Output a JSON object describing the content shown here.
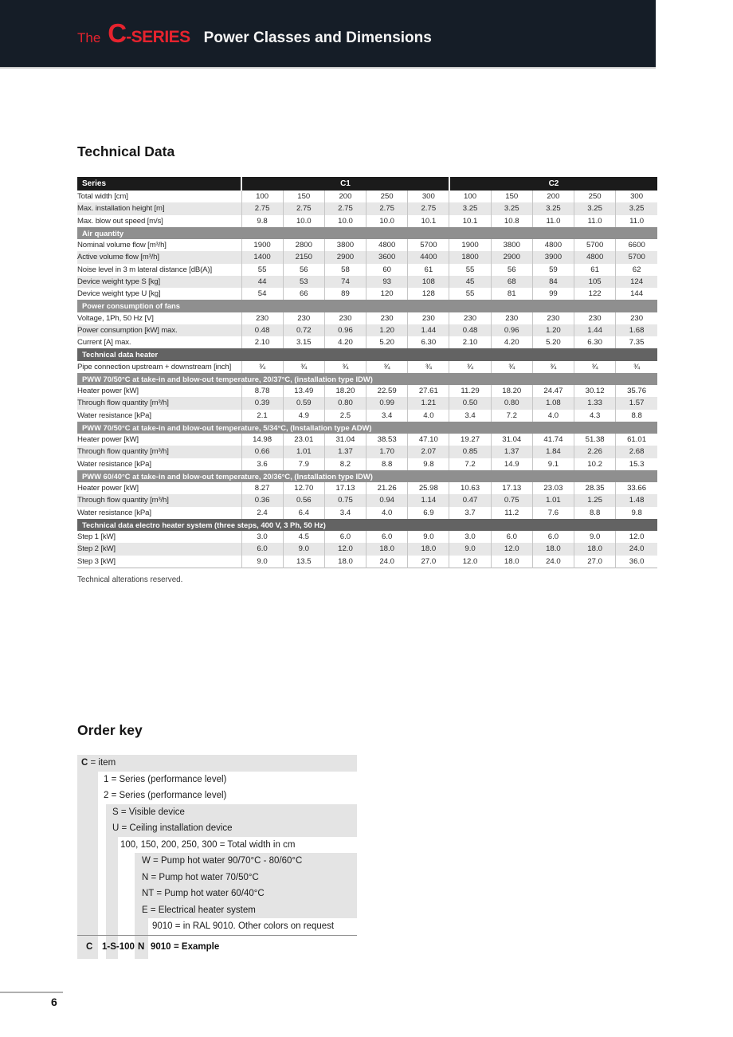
{
  "header": {
    "the": "The",
    "brand_c": "C",
    "brand_series": "-SERIES",
    "title": "Power Classes and Dimensions"
  },
  "headings": {
    "technical_data": "Technical Data",
    "order_key": "Order key"
  },
  "note": "Technical alterations reserved.",
  "footer": {
    "page_number": "6"
  },
  "table": {
    "series_label": "Series",
    "group1": "C1",
    "group2": "C2",
    "rows": [
      {
        "kind": "data",
        "label": "Total width [cm]",
        "values": [
          "100",
          "150",
          "200",
          "250",
          "300",
          "100",
          "150",
          "200",
          "250",
          "300"
        ]
      },
      {
        "kind": "data",
        "label": "Max. installation height [m]",
        "values": [
          "2.75",
          "2.75",
          "2.75",
          "2.75",
          "2.75",
          "3.25",
          "3.25",
          "3.25",
          "3.25",
          "3.25"
        ]
      },
      {
        "kind": "data",
        "label": "Max. blow out speed [m/s]",
        "values": [
          "9.8",
          "10.0",
          "10.0",
          "10.0",
          "10.1",
          "10.1",
          "10.8",
          "11.0",
          "11.0",
          "11.0"
        ]
      },
      {
        "kind": "section",
        "style": "mid",
        "label": "Air quantity"
      },
      {
        "kind": "data",
        "label": "Nominal volume flow [m³/h]",
        "values": [
          "1900",
          "2800",
          "3800",
          "4800",
          "5700",
          "1900",
          "3800",
          "4800",
          "5700",
          "6600"
        ]
      },
      {
        "kind": "data",
        "label": "Active volume flow [m³/h]",
        "values": [
          "1400",
          "2150",
          "2900",
          "3600",
          "4400",
          "1800",
          "2900",
          "3900",
          "4800",
          "5700"
        ]
      },
      {
        "kind": "data",
        "label": "Noise level in 3 m lateral distance [dB(A)]",
        "values": [
          "55",
          "56",
          "58",
          "60",
          "61",
          "55",
          "56",
          "59",
          "61",
          "62"
        ]
      },
      {
        "kind": "data",
        "label": "Device weight type S [kg]",
        "values": [
          "44",
          "53",
          "74",
          "93",
          "108",
          "45",
          "68",
          "84",
          "105",
          "124"
        ]
      },
      {
        "kind": "data",
        "label": "Device weight type U [kg]",
        "values": [
          "54",
          "66",
          "89",
          "120",
          "128",
          "55",
          "81",
          "99",
          "122",
          "144"
        ]
      },
      {
        "kind": "section",
        "style": "mid",
        "label": "Power consumption of fans"
      },
      {
        "kind": "data",
        "label": "Voltage, 1Ph, 50 Hz [V]",
        "values": [
          "230",
          "230",
          "230",
          "230",
          "230",
          "230",
          "230",
          "230",
          "230",
          "230"
        ]
      },
      {
        "kind": "data",
        "label": "Power consumption [kW] max.",
        "values": [
          "0.48",
          "0.72",
          "0.96",
          "1.20",
          "1.44",
          "0.48",
          "0.96",
          "1.20",
          "1.44",
          "1.68"
        ]
      },
      {
        "kind": "data",
        "label": "Current [A] max.",
        "values": [
          "2.10",
          "3.15",
          "4.20",
          "5.20",
          "6.30",
          "2.10",
          "4.20",
          "5.20",
          "6.30",
          "7.35"
        ]
      },
      {
        "kind": "section",
        "style": "dark",
        "label": "Technical data heater"
      },
      {
        "kind": "data",
        "label": "Pipe connection upstream + downstream [inch]",
        "values": [
          "¾",
          "¾",
          "¾",
          "¾",
          "¾",
          "¾",
          "¾",
          "¾",
          "¾",
          "¾"
        ]
      },
      {
        "kind": "section",
        "style": "mid",
        "label": "PWW 70/50°C at take-in and blow-out temperature, 20/37°C, (installation type IDW)"
      },
      {
        "kind": "data",
        "label": "Heater power [kW]",
        "values": [
          "8.78",
          "13.49",
          "18.20",
          "22.59",
          "27.61",
          "11.29",
          "18.20",
          "24.47",
          "30.12",
          "35.76"
        ]
      },
      {
        "kind": "data",
        "label": "Through flow quantity [m³/h]",
        "values": [
          "0.39",
          "0.59",
          "0.80",
          "0.99",
          "1.21",
          "0.50",
          "0.80",
          "1.08",
          "1.33",
          "1.57"
        ]
      },
      {
        "kind": "data",
        "label": "Water resistance [kPa]",
        "values": [
          "2.1",
          "4.9",
          "2.5",
          "3.4",
          "4.0",
          "3.4",
          "7.2",
          "4.0",
          "4.3",
          "8.8"
        ]
      },
      {
        "kind": "section",
        "style": "mid",
        "label": "PWW 70/50°C at take-in and blow-out temperature, 5/34°C, (Installation type ADW)"
      },
      {
        "kind": "data",
        "label": "Heater power [kW]",
        "values": [
          "14.98",
          "23.01",
          "31.04",
          "38.53",
          "47.10",
          "19.27",
          "31.04",
          "41.74",
          "51.38",
          "61.01"
        ]
      },
      {
        "kind": "data",
        "label": "Through flow quantity [m³/h]",
        "values": [
          "0.66",
          "1.01",
          "1.37",
          "1.70",
          "2.07",
          "0.85",
          "1.37",
          "1.84",
          "2.26",
          "2.68"
        ]
      },
      {
        "kind": "data",
        "label": "Water resistance [kPa]",
        "values": [
          "3.6",
          "7.9",
          "8.2",
          "8.8",
          "9.8",
          "7.2",
          "14.9",
          "9.1",
          "10.2",
          "15.3"
        ]
      },
      {
        "kind": "section",
        "style": "mid",
        "label": "PWW 60/40°C at take-in and blow-out temperature, 20/36°C, (Installation type IDW)"
      },
      {
        "kind": "data",
        "label": "Heater power [kW]",
        "values": [
          "8.27",
          "12.70",
          "17.13",
          "21.26",
          "25.98",
          "10.63",
          "17.13",
          "23.03",
          "28.35",
          "33.66"
        ]
      },
      {
        "kind": "data",
        "label": "Through flow quantity [m³/h]",
        "values": [
          "0.36",
          "0.56",
          "0.75",
          "0.94",
          "1.14",
          "0.47",
          "0.75",
          "1.01",
          "1.25",
          "1.48"
        ]
      },
      {
        "kind": "data",
        "label": "Water resistance [kPa]",
        "values": [
          "2.4",
          "6.4",
          "3.4",
          "4.0",
          "6.9",
          "3.7",
          "11.2",
          "7.6",
          "8.8",
          "9.8"
        ]
      },
      {
        "kind": "section",
        "style": "dark",
        "label": "Technical data electro heater system (three steps, 400 V, 3 Ph, 50 Hz)"
      },
      {
        "kind": "data",
        "label": "Step 1 [kW]",
        "values": [
          "3.0",
          "4.5",
          "6.0",
          "6.0",
          "9.0",
          "3.0",
          "6.0",
          "6.0",
          "9.0",
          "12.0"
        ]
      },
      {
        "kind": "data",
        "label": "Step 2 [kW]",
        "values": [
          "6.0",
          "9.0",
          "12.0",
          "18.0",
          "18.0",
          "9.0",
          "12.0",
          "18.0",
          "18.0",
          "24.0"
        ]
      },
      {
        "kind": "data",
        "label": "Step 3 [kW]",
        "values": [
          "9.0",
          "13.5",
          "18.0",
          "24.0",
          "27.0",
          "12.0",
          "18.0",
          "24.0",
          "27.0",
          "36.0"
        ]
      }
    ]
  },
  "order_key": {
    "rows": [
      {
        "level": 0,
        "bar": true,
        "b": "C",
        "rest": " = item"
      },
      {
        "level": 1,
        "bar": false,
        "b": "",
        "rest": "1 = Series (performance level)"
      },
      {
        "level": 1,
        "bar": false,
        "b": "",
        "rest": "2 = Series (performance level)"
      },
      {
        "level": 2,
        "bar": true,
        "b": "",
        "rest": "S = Visible device"
      },
      {
        "level": 2,
        "bar": true,
        "b": "",
        "rest": "U = Ceiling installation device"
      },
      {
        "level": 3,
        "bar": false,
        "b": "",
        "rest": "100, 150, 200, 250, 300 = Total width in cm"
      },
      {
        "level": 4,
        "bar": true,
        "b": "",
        "rest": "W = Pump hot water  90/70°C - 80/60°C"
      },
      {
        "level": 4,
        "bar": true,
        "b": "",
        "rest": "N  = Pump hot water  70/50°C"
      },
      {
        "level": 4,
        "bar": true,
        "b": "",
        "rest": "NT = Pump hot water  60/40°C"
      },
      {
        "level": 4,
        "bar": true,
        "b": "",
        "rest": "E   = Electrical heater system"
      },
      {
        "level": 5,
        "bar": false,
        "b": "",
        "rest": "9010 = in RAL 9010.  Other colors on request"
      }
    ],
    "example": {
      "parts": [
        "C",
        "1-S-100",
        "N",
        "9010",
        "= Example"
      ]
    }
  }
}
